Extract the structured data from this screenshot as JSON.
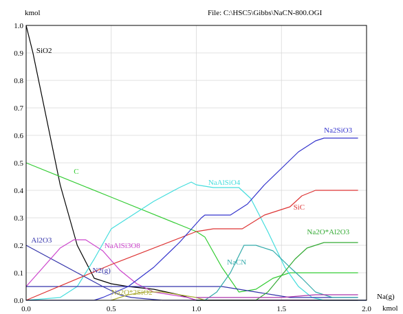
{
  "chart_data": {
    "type": "line",
    "title": "File: C:\\HSC5\\Gibbs\\NaCN-800.OGI",
    "ylabel": "kmol",
    "xlabel": "kmol",
    "xlabel_top": "Na(g)",
    "xlim": [
      0,
      2
    ],
    "ylim": [
      0,
      1
    ],
    "x_ticks": [
      "0.0",
      "0.5",
      "1.0",
      "1.5",
      "2.0"
    ],
    "y_ticks": [
      "0.0",
      "0.1",
      "0.2",
      "0.3",
      "0.4",
      "0.5",
      "0.6",
      "0.7",
      "0.8",
      "0.9",
      "1.0"
    ],
    "grid": true,
    "legend": "inline labels",
    "series": [
      {
        "name": "SiO2",
        "color": "#000000",
        "label_at": [
          0.06,
          0.9
        ],
        "points": [
          [
            0,
            1.0
          ],
          [
            0.04,
            0.9
          ],
          [
            0.1,
            0.72
          ],
          [
            0.2,
            0.42
          ],
          [
            0.3,
            0.2
          ],
          [
            0.4,
            0.08
          ],
          [
            0.5,
            0.06
          ],
          [
            0.6,
            0.05
          ],
          [
            0.75,
            0.04
          ],
          [
            0.9,
            0.02
          ],
          [
            1.0,
            0.0
          ],
          [
            2.0,
            0.0
          ]
        ]
      },
      {
        "name": "C",
        "color": "#33cc33",
        "label_at": [
          0.28,
          0.46
        ],
        "points": [
          [
            0,
            0.5
          ],
          [
            0.5,
            0.375
          ],
          [
            1.0,
            0.25
          ],
          [
            1.05,
            0.23
          ],
          [
            1.15,
            0.12
          ],
          [
            1.25,
            0.03
          ],
          [
            1.35,
            0.04
          ],
          [
            1.45,
            0.08
          ],
          [
            1.55,
            0.1
          ],
          [
            1.65,
            0.1
          ],
          [
            1.75,
            0.1
          ],
          [
            1.95,
            0.1
          ]
        ]
      },
      {
        "name": "Al2O3",
        "color": "#3333aa",
        "label_at": [
          0.03,
          0.21
        ],
        "points": [
          [
            0,
            0.2
          ],
          [
            0.15,
            0.15
          ],
          [
            0.3,
            0.1
          ],
          [
            0.45,
            0.05
          ],
          [
            0.55,
            0.02
          ],
          [
            0.62,
            0.01
          ],
          [
            0.8,
            0.0
          ],
          [
            2.0,
            0.0
          ]
        ]
      },
      {
        "name": "NaAlSi3O8",
        "color": "#cc44cc",
        "label_at": [
          0.46,
          0.19
        ],
        "points": [
          [
            0,
            0.05
          ],
          [
            0.1,
            0.12
          ],
          [
            0.2,
            0.19
          ],
          [
            0.28,
            0.22
          ],
          [
            0.35,
            0.22
          ],
          [
            0.45,
            0.18
          ],
          [
            0.55,
            0.11
          ],
          [
            0.65,
            0.06
          ],
          [
            0.75,
            0.03
          ],
          [
            0.85,
            0.02
          ],
          [
            0.95,
            0.01
          ],
          [
            1.0,
            0.0
          ],
          [
            2.0,
            0.0
          ]
        ]
      },
      {
        "name": "NaAlSiO4",
        "color": "#44dddd",
        "label_at": [
          1.07,
          0.42
        ],
        "points": [
          [
            0,
            0.0
          ],
          [
            0.2,
            0.01
          ],
          [
            0.3,
            0.05
          ],
          [
            0.4,
            0.15
          ],
          [
            0.5,
            0.26
          ],
          [
            0.6,
            0.3
          ],
          [
            0.75,
            0.36
          ],
          [
            0.9,
            0.41
          ],
          [
            0.97,
            0.43
          ],
          [
            1.0,
            0.42
          ],
          [
            1.1,
            0.41
          ],
          [
            1.25,
            0.41
          ],
          [
            1.32,
            0.37
          ],
          [
            1.42,
            0.25
          ],
          [
            1.52,
            0.12
          ],
          [
            1.6,
            0.05
          ],
          [
            1.68,
            0.01
          ],
          [
            1.75,
            0.0
          ],
          [
            2.0,
            0.0
          ]
        ]
      },
      {
        "name": "N2(g)",
        "color": "#3333aa",
        "label_at": [
          0.39,
          0.1
        ],
        "points": [
          [
            0,
            0.05
          ],
          [
            0.5,
            0.05
          ],
          [
            0.6,
            0.05
          ],
          [
            0.75,
            0.05
          ],
          [
            0.9,
            0.05
          ],
          [
            1.15,
            0.05
          ],
          [
            1.25,
            0.04
          ],
          [
            1.35,
            0.03
          ],
          [
            1.45,
            0.02
          ],
          [
            1.55,
            0.01
          ],
          [
            1.7,
            0.01
          ],
          [
            1.95,
            0.01
          ]
        ]
      },
      {
        "name": "Na2O*2SiO2",
        "color": "#aaaa33",
        "label_at": [
          0.5,
          0.02
        ],
        "points": [
          [
            0.5,
            0.0
          ],
          [
            0.6,
            0.02
          ],
          [
            0.7,
            0.03
          ],
          [
            0.8,
            0.03
          ],
          [
            0.9,
            0.02
          ],
          [
            1.0,
            0.01
          ],
          [
            1.05,
            0.0
          ]
        ]
      },
      {
        "name": "SiC",
        "color": "#dd3333",
        "label_at": [
          1.57,
          0.33
        ],
        "points": [
          [
            0,
            0.0
          ],
          [
            0.5,
            0.13
          ],
          [
            1.0,
            0.25
          ],
          [
            1.1,
            0.26
          ],
          [
            1.27,
            0.26
          ],
          [
            1.4,
            0.31
          ],
          [
            1.55,
            0.34
          ],
          [
            1.62,
            0.38
          ],
          [
            1.7,
            0.4
          ],
          [
            1.8,
            0.4
          ],
          [
            1.95,
            0.4
          ]
        ]
      },
      {
        "name": "Na2SiO3",
        "color": "#3333cc",
        "label_at": [
          1.75,
          0.61
        ],
        "points": [
          [
            0,
            0.0
          ],
          [
            0.4,
            0.0
          ],
          [
            0.45,
            0.01
          ],
          [
            0.6,
            0.05
          ],
          [
            0.75,
            0.12
          ],
          [
            0.9,
            0.21
          ],
          [
            1.03,
            0.3
          ],
          [
            1.05,
            0.31
          ],
          [
            1.2,
            0.31
          ],
          [
            1.3,
            0.35
          ],
          [
            1.4,
            0.42
          ],
          [
            1.5,
            0.48
          ],
          [
            1.6,
            0.54
          ],
          [
            1.7,
            0.58
          ],
          [
            1.75,
            0.59
          ],
          [
            1.95,
            0.59
          ]
        ]
      },
      {
        "name": "NaCN",
        "color": "#33aaaa",
        "label_at": [
          1.18,
          0.13
        ],
        "points": [
          [
            1.0,
            0.0
          ],
          [
            1.05,
            0.0
          ],
          [
            1.12,
            0.03
          ],
          [
            1.2,
            0.1
          ],
          [
            1.28,
            0.2
          ],
          [
            1.35,
            0.2
          ],
          [
            1.45,
            0.18
          ],
          [
            1.55,
            0.12
          ],
          [
            1.62,
            0.08
          ],
          [
            1.7,
            0.03
          ],
          [
            1.8,
            0.01
          ],
          [
            1.95,
            0.01
          ]
        ]
      },
      {
        "name": "Na2O*Al2O3",
        "color": "#33aa33",
        "label_at": [
          1.65,
          0.24
        ],
        "points": [
          [
            1.0,
            0.0
          ],
          [
            1.35,
            0.0
          ],
          [
            1.42,
            0.03
          ],
          [
            1.5,
            0.09
          ],
          [
            1.58,
            0.15
          ],
          [
            1.65,
            0.19
          ],
          [
            1.75,
            0.21
          ],
          [
            1.95,
            0.21
          ]
        ]
      },
      {
        "name": "",
        "color": "#aa33aa",
        "points": [
          [
            1.0,
            0.01
          ],
          [
            1.3,
            0.01
          ],
          [
            1.5,
            0.01
          ],
          [
            1.7,
            0.02
          ],
          [
            1.95,
            0.02
          ]
        ]
      },
      {
        "name": "",
        "color": "#444444",
        "points": [
          [
            1.0,
            0.0
          ],
          [
            1.5,
            0.0
          ],
          [
            1.95,
            0.0
          ]
        ]
      }
    ]
  }
}
